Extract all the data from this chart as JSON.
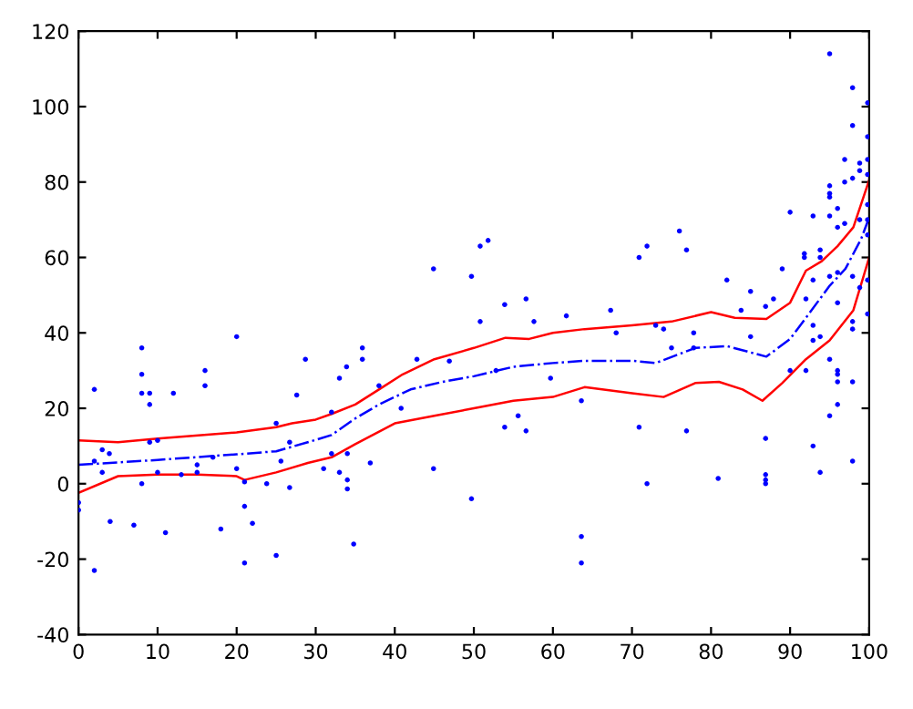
{
  "chart_data": {
    "type": "scatter",
    "xlim": [
      0,
      100
    ],
    "ylim": [
      -40,
      120
    ],
    "xticks": [
      0,
      10,
      20,
      30,
      40,
      50,
      60,
      70,
      80,
      90,
      100
    ],
    "yticks": [
      -40,
      -20,
      0,
      20,
      40,
      60,
      80,
      100,
      120
    ],
    "grid": false,
    "legend": false,
    "series": [
      {
        "color": "#0000ff",
        "marker": "circle",
        "x": [
          0,
          0,
          2,
          2,
          3,
          3.9,
          3,
          4,
          2,
          7,
          8,
          8,
          8,
          9,
          9,
          9,
          10,
          10,
          8,
          11,
          12,
          13,
          15,
          15,
          16,
          16,
          17,
          18,
          20,
          20,
          21,
          21,
          21,
          22,
          23.8,
          25,
          25,
          25.6,
          26.7,
          26.7,
          27.6,
          28.7,
          32,
          32,
          31,
          33,
          33,
          33.9,
          34,
          34,
          34,
          35.9,
          35.9,
          34.8,
          36.9,
          38,
          40.8,
          42.8,
          44.9,
          44.9,
          46.9,
          49.7,
          49.7,
          50.8,
          51.8,
          50.8,
          52.8,
          53.9,
          53.9,
          55.6,
          56.6,
          57.6,
          56.6,
          59.7,
          61.7,
          63.6,
          63.6,
          63.6,
          95,
          97.9,
          99.8,
          97.9,
          99.8,
          96.9,
          98.8,
          99.8,
          98.8,
          96.9,
          97.9,
          99.8,
          95,
          95,
          95,
          96,
          90,
          92.9,
          95,
          96,
          96.9,
          98.8,
          99.8,
          99.8,
          99.8,
          89,
          91.8,
          91.8,
          93.8,
          93.8,
          92.9,
          95,
          96,
          97.9,
          99.8,
          98.8,
          92,
          86.9,
          87.9,
          85,
          83.8,
          82,
          76,
          71.9,
          70.9,
          76.9,
          67.3,
          68,
          73,
          74,
          75,
          77.8,
          77.8,
          85,
          92.9,
          93.8,
          96,
          97.9,
          97.9,
          99.8,
          92.9,
          90,
          92,
          95,
          96,
          96,
          96,
          97.9,
          96,
          95,
          70.9,
          76.9,
          86.9,
          92.9,
          97.9,
          93.8,
          86.9,
          86.9,
          86.9,
          80.9,
          71.9
        ],
        "values": [
          -5,
          -7,
          25,
          6,
          9,
          8,
          3,
          -10,
          -23,
          -11,
          36,
          29,
          24,
          24,
          21,
          11,
          11.5,
          3,
          0,
          -13,
          24,
          2.4,
          3,
          5,
          26,
          30,
          7,
          -12,
          39,
          4,
          0.5,
          -6,
          -21,
          -10.5,
          0,
          16,
          -19,
          6,
          11,
          -1,
          23.5,
          33,
          19,
          8,
          4,
          28,
          3,
          31,
          8,
          1,
          -1.4,
          36,
          33,
          -16,
          5.5,
          26,
          20,
          33,
          57,
          4,
          32.5,
          55,
          -4,
          63,
          64.5,
          43,
          30,
          47.5,
          15,
          18,
          49,
          43,
          14,
          28,
          44.5,
          22,
          -14,
          -21,
          114,
          105,
          101,
          95,
          92,
          86,
          85,
          86,
          83,
          80,
          81,
          82,
          79,
          77,
          76,
          73,
          72,
          71,
          71,
          68,
          69,
          70,
          74,
          70,
          66,
          57,
          61,
          60,
          62,
          60,
          54,
          55,
          56,
          55,
          54,
          52,
          49,
          47,
          49,
          51,
          46,
          54,
          67,
          63,
          60,
          62,
          46,
          40,
          42,
          41,
          36,
          40,
          36,
          39,
          42,
          39,
          48,
          43,
          41,
          45,
          38,
          30,
          30,
          33,
          30,
          29,
          27,
          27,
          21,
          18,
          15,
          14,
          12,
          10,
          6,
          3,
          2.4,
          1,
          0,
          1.4,
          0
        ]
      },
      {
        "type": "line",
        "color": "#ff0000",
        "marker": "none",
        "line_style": "solid",
        "x": [
          0,
          5,
          10,
          20,
          25,
          27,
          30,
          32,
          35,
          38,
          41,
          45,
          50,
          54,
          57,
          60,
          64,
          70,
          75,
          80,
          83,
          87,
          90,
          92,
          94,
          96,
          98,
          100
        ],
        "values": [
          11.5,
          11,
          12,
          13.6,
          15,
          16,
          17,
          18.5,
          21,
          25,
          29,
          33,
          36,
          38.7,
          38.4,
          40,
          41,
          42,
          43,
          45.5,
          44,
          43.7,
          48,
          56.5,
          59,
          63,
          68,
          80.5
        ]
      },
      {
        "type": "line",
        "color": "#0000ff",
        "marker": "none",
        "line_style": "dashed",
        "x": [
          0,
          10,
          20,
          25,
          29,
          32,
          35,
          38,
          42,
          46,
          50,
          55,
          60,
          64,
          70,
          73,
          78,
          82,
          87,
          90,
          92,
          95,
          97,
          99,
          100
        ],
        "values": [
          5,
          6.3,
          7.8,
          8.6,
          11,
          12.9,
          17.3,
          21,
          25,
          27,
          28.5,
          31,
          32,
          32.6,
          32.6,
          32,
          36,
          36.5,
          33.7,
          38.4,
          44,
          52.5,
          57,
          65,
          70.6
        ]
      },
      {
        "type": "line",
        "color": "#ff0000",
        "marker": "none",
        "line_style": "solid",
        "x": [
          0,
          5,
          10,
          15,
          20,
          21,
          25,
          29,
          32,
          35,
          40,
          45,
          50,
          55,
          60,
          64,
          70,
          74,
          78,
          81,
          84,
          86.5,
          89,
          92,
          95,
          98,
          100
        ],
        "values": [
          -2.4,
          2,
          2.4,
          2.4,
          2,
          1,
          3,
          5.5,
          7,
          10.5,
          16,
          18,
          20,
          22,
          23,
          25.6,
          24,
          23,
          26.7,
          27,
          25,
          22,
          26.7,
          33,
          38,
          46,
          60
        ]
      }
    ]
  }
}
